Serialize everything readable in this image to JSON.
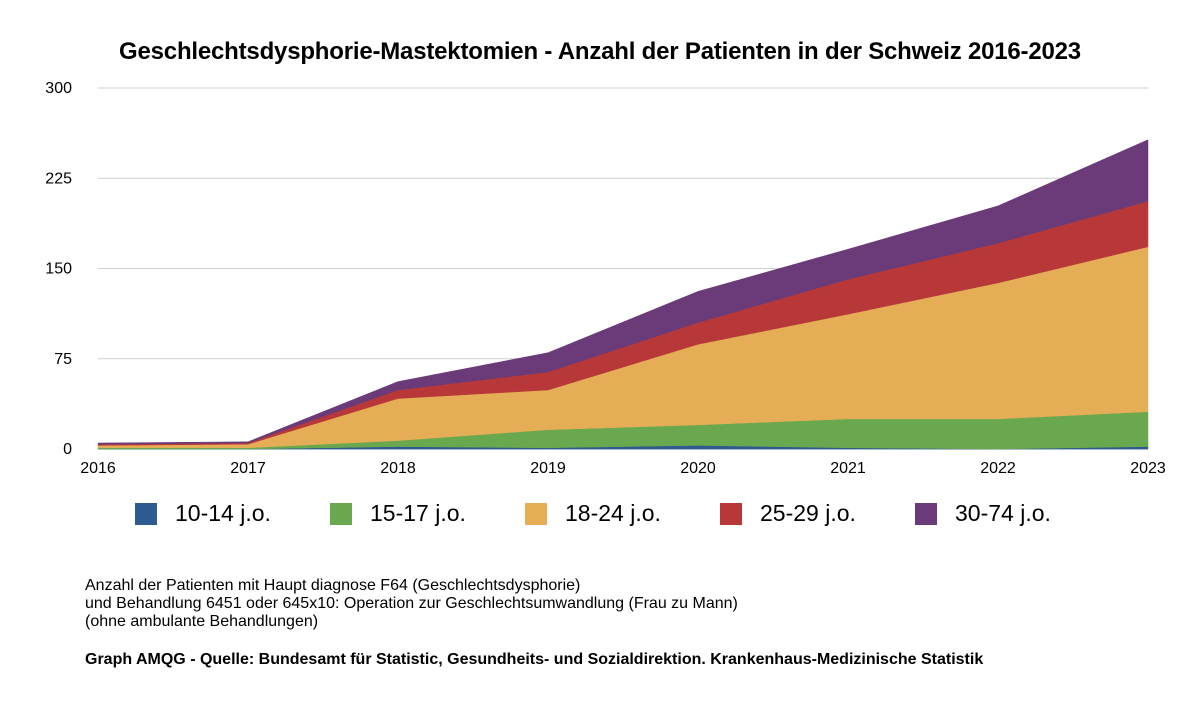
{
  "chart_data": {
    "type": "area",
    "stacked": true,
    "title": "Geschlechtsdysphorie-Mastektomien - Anzahl der Patienten in der Schweiz 2016-2023",
    "xlabel": "",
    "ylabel": "",
    "x": [
      "2016",
      "2017",
      "2018",
      "2019",
      "2020",
      "2021",
      "2022",
      "2023"
    ],
    "ylim": [
      0,
      300
    ],
    "yticks": [
      "0",
      "75",
      "150",
      "225",
      "300"
    ],
    "grid": true,
    "legend_position": "bottom",
    "series": [
      {
        "name": "10-14 j.o.",
        "color": "#2e5a8f",
        "values": [
          0,
          0,
          2,
          1,
          3,
          1,
          0,
          2
        ]
      },
      {
        "name": "15-17 j.o.",
        "color": "#6aa84f",
        "values": [
          1,
          1,
          5,
          15,
          17,
          24,
          25,
          29
        ]
      },
      {
        "name": "18-24 j.o.",
        "color": "#e5ad56",
        "values": [
          2,
          3,
          35,
          33,
          67,
          87,
          113,
          137
        ]
      },
      {
        "name": "25-29 j.o.",
        "color": "#b8383a",
        "values": [
          1,
          1,
          7,
          15,
          18,
          29,
          33,
          38
        ]
      },
      {
        "name": "30-74 j.o.",
        "color": "#6a3b78",
        "values": [
          1,
          1,
          7,
          16,
          26,
          25,
          31,
          51
        ]
      }
    ]
  },
  "notes": {
    "line1": "Anzahl der Patienten mit Haupt diagnose F64 (Geschlechtsdysphorie)",
    "line2": "und Behandlung 6451 oder 645x10: Operation zur Geschlechtsumwandlung (Frau zu Mann)",
    "line3": "(ohne ambulante Behandlungen)"
  },
  "source": "Graph AMQG - Quelle: Bundesamt für Statistic, Gesundheits- und Sozialdirektion. Krankenhaus-Medizinische Statistik"
}
